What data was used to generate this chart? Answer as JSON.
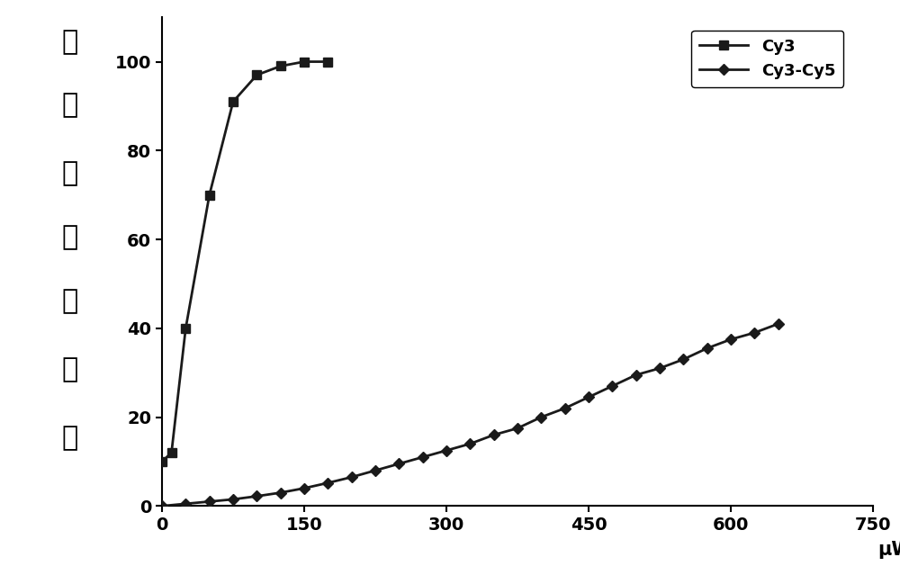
{
  "cy3_x": [
    0,
    10,
    25,
    50,
    75,
    100,
    125,
    150,
    175
  ],
  "cy3_y": [
    10,
    12,
    40,
    70,
    91,
    97,
    99,
    100,
    100
  ],
  "cy3cy5_x": [
    0,
    25,
    50,
    75,
    100,
    125,
    150,
    175,
    200,
    225,
    250,
    275,
    300,
    325,
    350,
    375,
    400,
    425,
    450,
    475,
    500,
    525,
    550,
    575,
    600,
    625,
    650
  ],
  "cy3cy5_y": [
    0,
    0.5,
    1.0,
    1.5,
    2.2,
    3.0,
    4.0,
    5.2,
    6.5,
    8.0,
    9.5,
    11.0,
    12.5,
    14.0,
    16.0,
    17.5,
    20.0,
    22.0,
    24.5,
    27.0,
    29.5,
    31.0,
    33.0,
    35.5,
    37.5,
    39.0,
    41.0
  ],
  "cy3_label": "Cy3",
  "cy3cy5_label": "Cy3-Cy5",
  "ylabel_chars": [
    "归",
    "一",
    "化",
    "荧",
    "光",
    "强",
    "度"
  ],
  "xlabel": "μW",
  "xlim": [
    0,
    750
  ],
  "ylim": [
    0,
    110
  ],
  "xticks": [
    0,
    150,
    300,
    450,
    600,
    750
  ],
  "yticks": [
    0,
    20,
    40,
    60,
    80,
    100
  ],
  "line_color": "#1a1a1a",
  "background_color": "#ffffff",
  "marker_size": 7,
  "line_width": 2.0,
  "tick_fontsize": 14,
  "legend_fontsize": 13,
  "ylabel_fontsize": 22
}
